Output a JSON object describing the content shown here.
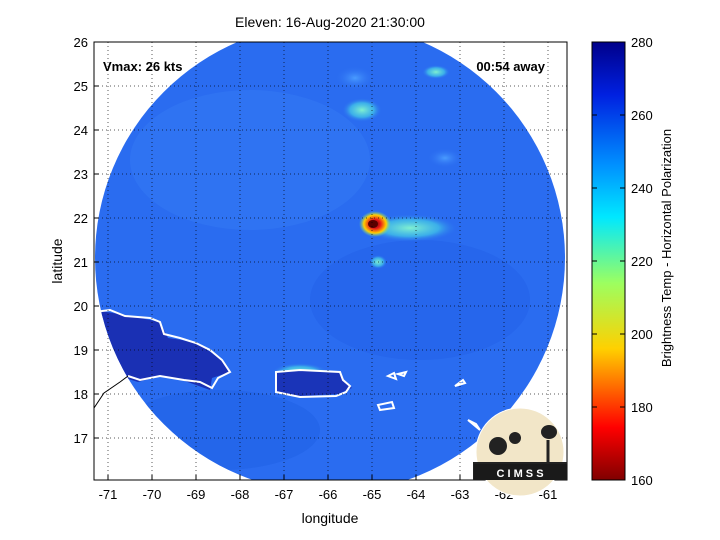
{
  "title": "Eleven: 16-Aug-2020 21:30:00",
  "xlabel": "longitude",
  "ylabel": "latitude",
  "vmax_label": "Vmax: 26 kts",
  "time_label": "00:54 away",
  "colorbar": {
    "label": "Brightness Temp - Horizontal Polarization",
    "ticks": [
      "280",
      "260",
      "240",
      "220",
      "200",
      "180",
      "160"
    ],
    "range": [
      160,
      280
    ]
  },
  "x_ticks": [
    "-71",
    "-70",
    "-69",
    "-68",
    "-67",
    "-66",
    "-65",
    "-64",
    "-63",
    "-62",
    "-61"
  ],
  "y_ticks": [
    "26",
    "25",
    "24",
    "23",
    "22",
    "21",
    "20",
    "19",
    "18",
    "17"
  ],
  "logo_text": "C I M S S",
  "map": {
    "lon_range": [
      -71.3,
      -60.5
    ],
    "lat_range": [
      16,
      26
    ],
    "swath_center": {
      "lon": -66.0,
      "lat": 21.0
    },
    "storm_center": {
      "lon": -65.0,
      "lat": 21.9,
      "min_tb": 168
    },
    "colors": {
      "background": "#2a6cf0",
      "island_interior": "#1a30b4",
      "warm_core": "#c01818",
      "coastline": "#ffffff"
    }
  }
}
